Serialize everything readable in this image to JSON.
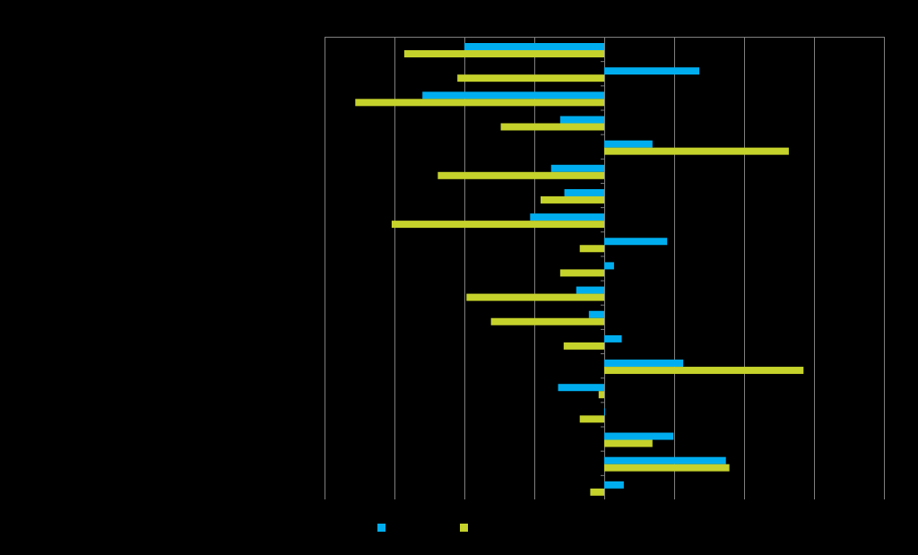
{
  "chart_data": {
    "type": "bar",
    "orientation": "horizontal",
    "title": "",
    "xlabel": "",
    "ylabel": "",
    "xlim": [
      -40,
      40
    ],
    "grid": true,
    "legend_position": "bottom",
    "series": [
      {
        "name": "",
        "color": "#00aeef",
        "values": [
          -20,
          13.6,
          -26,
          -6.3,
          6.9,
          -7.6,
          -5.7,
          -10.6,
          9.0,
          1.4,
          -4,
          -2.2,
          2.5,
          11.3,
          -6.6,
          0.1,
          9.9,
          17.4,
          2.8
        ]
      },
      {
        "name": "",
        "color": "#c5d22b",
        "values": [
          -28.6,
          -21,
          -35.6,
          -14.8,
          26.4,
          -23.8,
          -9.1,
          -30.4,
          -3.5,
          -6.3,
          -19.7,
          -16.2,
          -5.8,
          28.5,
          -0.8,
          -3.5,
          6.9,
          17.9,
          -2
        ]
      }
    ]
  }
}
